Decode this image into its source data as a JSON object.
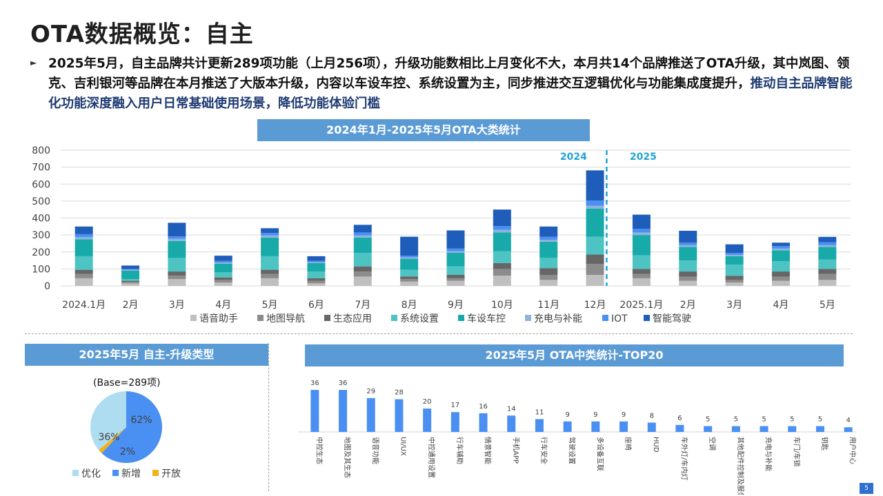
{
  "page": {
    "title": "OTA数据概览：自主",
    "summary_part1": "2025年5月，自主品牌共计更新289项功能（上月256项），升级功能数相比上月变化不大，本月共14个品牌推送了OTA升级，其中岚图、领克、吉利银河等品牌在本月推送了大版本升级，内容以车设车控、系统设置为主，同步推进交互逻辑优化与功能集成度提升，",
    "summary_part2": "推动自主品牌智能化功能深度融入用户日常基础使用场景，降低功能体验门槛",
    "page_number": "5"
  },
  "banners": {
    "main": "2024年1月-2025年5月OTA大类统计",
    "pie": "2025年5月 自主-升级类型",
    "top20": "2025年5月 OTA中类统计-TOP20"
  },
  "colors": {
    "banner": "#5b9bd5",
    "divider": "#1fa3d6",
    "语音助手": "#bfbfbf",
    "地图导航": "#8c8c8c",
    "生态应用": "#666666",
    "系统设置": "#4ec3c3",
    "车设车控": "#18aaa8",
    "充电与补能": "#8fb4dc",
    "IOT": "#4a8ff2",
    "智能驾驶": "#1f5dba",
    "pie_优化": "#aedcf0",
    "pie_新增": "#4a8ff2",
    "pie_开放": "#f2b21b",
    "top20_bar": "#4a8ff2"
  },
  "chart_data": [
    {
      "type": "bar",
      "stacked": true,
      "title": "2024年1月-2025年5月OTA大类统计",
      "categories": [
        "2024.1月",
        "2月",
        "3月",
        "4月",
        "5月",
        "6月",
        "7月",
        "8月",
        "9月",
        "10月",
        "11月",
        "12月",
        "2025.1月",
        "2月",
        "3月",
        "4月",
        "5月"
      ],
      "ylim": [
        0,
        800
      ],
      "yticks": [
        0,
        100,
        200,
        300,
        400,
        500,
        600,
        700,
        800
      ],
      "grid": true,
      "legend": "bottom",
      "year_labels": [
        "2024",
        "2025"
      ],
      "series": [
        {
          "name": "语音助手",
          "values": [
            45,
            15,
            40,
            20,
            45,
            15,
            55,
            25,
            30,
            60,
            35,
            65,
            45,
            30,
            20,
            30,
            35
          ]
        },
        {
          "name": "地图导航",
          "values": [
            25,
            8,
            20,
            15,
            25,
            15,
            30,
            15,
            15,
            40,
            30,
            65,
            25,
            25,
            15,
            25,
            35
          ]
        },
        {
          "name": "生态应用",
          "values": [
            25,
            7,
            25,
            15,
            25,
            15,
            30,
            15,
            20,
            35,
            40,
            55,
            30,
            30,
            25,
            30,
            30
          ]
        },
        {
          "name": "系统设置",
          "values": [
            80,
            10,
            80,
            30,
            80,
            40,
            80,
            40,
            50,
            70,
            60,
            105,
            80,
            65,
            65,
            60,
            55
          ]
        },
        {
          "name": "车设车控",
          "values": [
            100,
            50,
            100,
            50,
            110,
            50,
            90,
            65,
            80,
            110,
            95,
            165,
            120,
            80,
            50,
            65,
            75
          ]
        },
        {
          "name": "充电与补能",
          "values": [
            12,
            5,
            12,
            8,
            12,
            5,
            12,
            8,
            10,
            15,
            12,
            18,
            15,
            10,
            8,
            10,
            10
          ]
        },
        {
          "name": "IOT",
          "values": [
            18,
            5,
            15,
            10,
            15,
            8,
            18,
            10,
            15,
            22,
            18,
            30,
            22,
            15,
            12,
            15,
            18
          ]
        },
        {
          "name": "智能驾驶",
          "values": [
            45,
            20,
            80,
            30,
            28,
            27,
            45,
            112,
            107,
            98,
            60,
            178,
            83,
            70,
            50,
            20,
            31
          ]
        }
      ]
    },
    {
      "type": "pie",
      "title": "2025年5月 自主-升级类型",
      "base_label": "(Base=289项)",
      "slices": [
        {
          "name": "新增",
          "value": 62,
          "label": "62%"
        },
        {
          "name": "开放",
          "value": 2,
          "label": "2%"
        },
        {
          "name": "优化",
          "value": 36,
          "label": "36%"
        }
      ],
      "legend": "bottom"
    },
    {
      "type": "bar",
      "title": "2025年5月 OTA中类统计-TOP20",
      "categories": [
        "中控生态",
        "地图及其生态",
        "语音功能",
        "UI/UX",
        "中控通用设置",
        "行车辅助",
        "情景智能",
        "手机APP",
        "行车安全",
        "驾驶设置",
        "多设备互联",
        "座椅",
        "HUD",
        "车外灯/车内灯",
        "空调",
        "其他配件控制及服务",
        "充电与补能",
        "车门/车锁",
        "钥匙",
        "用户中心"
      ],
      "values": [
        36,
        36,
        29,
        28,
        20,
        17,
        16,
        14,
        11,
        9,
        9,
        9,
        8,
        6,
        5,
        5,
        5,
        5,
        5,
        4
      ]
    }
  ]
}
